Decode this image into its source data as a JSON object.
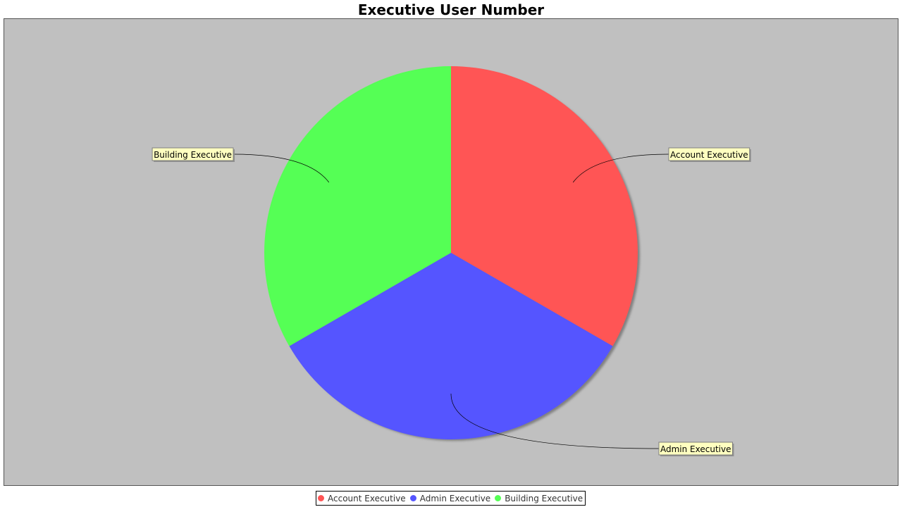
{
  "chart_data": {
    "type": "pie",
    "title": "Executive User Number",
    "slices": [
      {
        "label": "Account Executive",
        "value": 1,
        "color": "#ff5555"
      },
      {
        "label": "Admin Executive",
        "value": 1,
        "color": "#5555ff"
      },
      {
        "label": "Building Executive",
        "value": 1,
        "color": "#55ff55"
      }
    ],
    "legend": {
      "position": "bottom",
      "entries": [
        "Account Executive",
        "Admin Executive",
        "Building Executive"
      ]
    },
    "background_color": "#c0c0c0",
    "label_box_color": "#ffffc0"
  }
}
